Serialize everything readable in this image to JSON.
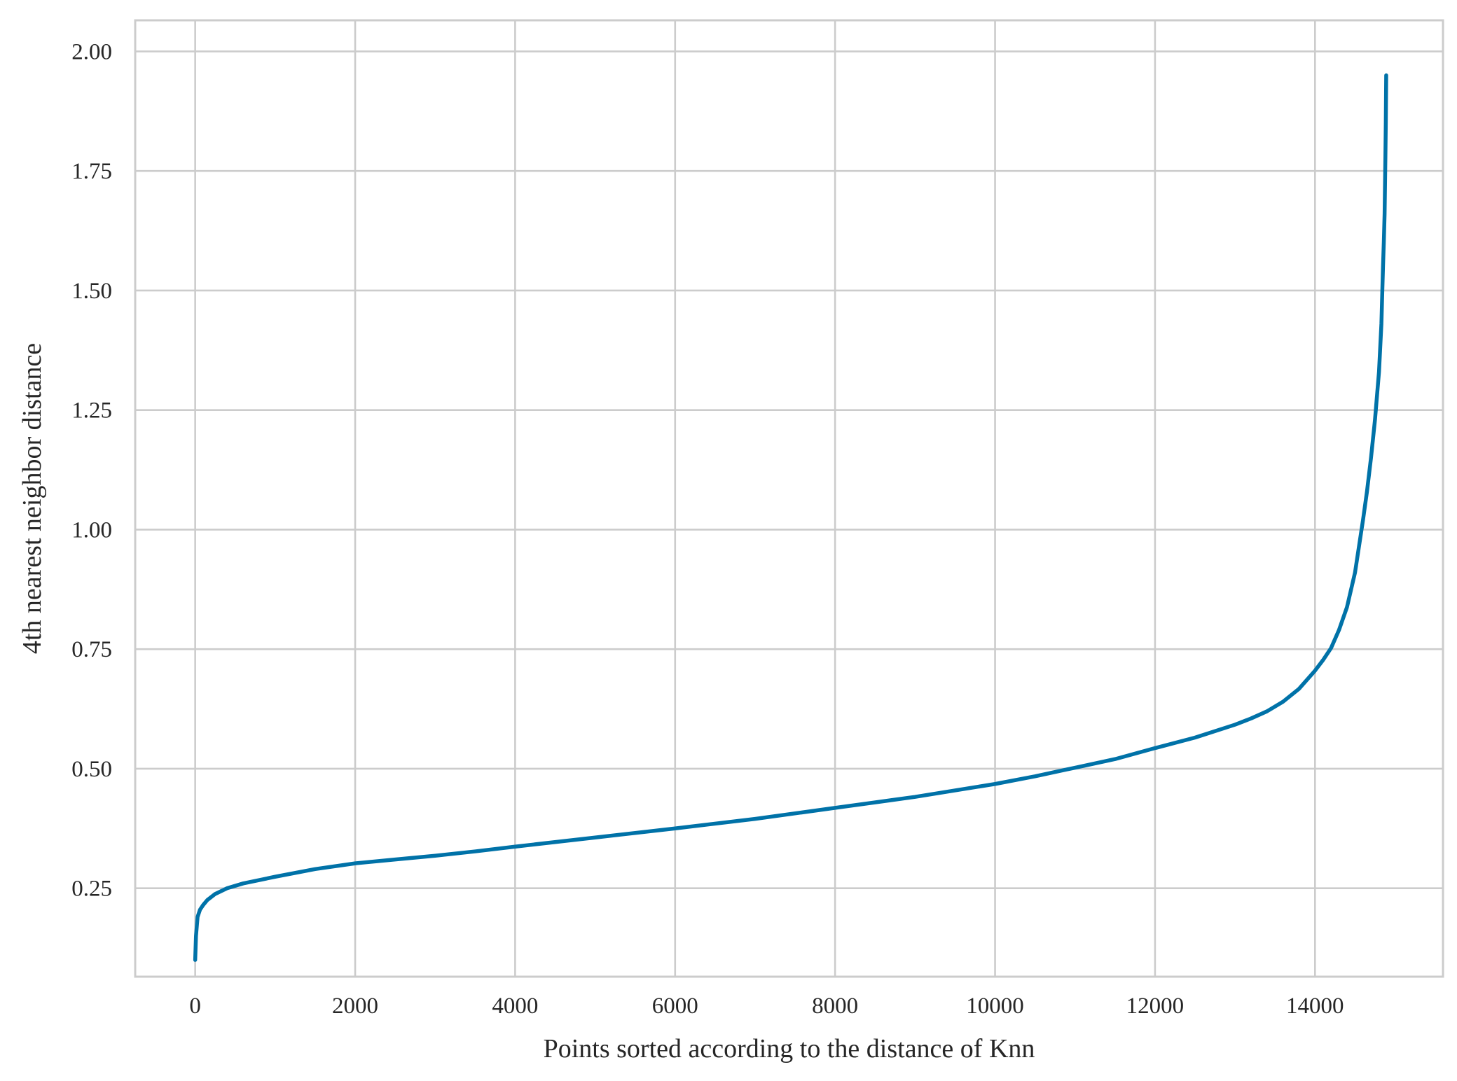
{
  "chart_data": {
    "type": "line",
    "title": "",
    "xlabel": "Points sorted according to the distance of Knn",
    "ylabel": "4th nearest neighbor distance",
    "xlim": [
      -750,
      15600
    ],
    "ylim": [
      0.065,
      2.065
    ],
    "x_ticks": [
      0,
      2000,
      4000,
      6000,
      8000,
      10000,
      12000,
      14000
    ],
    "y_ticks": [
      0.25,
      0.5,
      0.75,
      1.0,
      1.25,
      1.5,
      1.75,
      2.0
    ],
    "x_tick_labels": [
      "0",
      "2000",
      "4000",
      "6000",
      "8000",
      "10000",
      "12000",
      "14000"
    ],
    "y_tick_labels": [
      "0.25",
      "0.50",
      "0.75",
      "1.00",
      "1.25",
      "1.50",
      "1.75",
      "2.00"
    ],
    "grid": true,
    "legend": "none",
    "series": [
      {
        "color": "#0072a8",
        "x": [
          0,
          10,
          30,
          60,
          100,
          150,
          250,
          400,
          600,
          1000,
          1500,
          2000,
          2500,
          3000,
          3500,
          4000,
          5000,
          6000,
          7000,
          8000,
          9000,
          10000,
          10500,
          11000,
          11500,
          12000,
          12500,
          13000,
          13200,
          13400,
          13600,
          13800,
          14000,
          14100,
          14200,
          14300,
          14400,
          14500,
          14600,
          14650,
          14700,
          14750,
          14800,
          14830,
          14850,
          14860,
          14870,
          14875,
          14880,
          14885,
          14890
        ],
        "y": [
          0.1,
          0.15,
          0.19,
          0.205,
          0.215,
          0.225,
          0.238,
          0.25,
          0.26,
          0.274,
          0.29,
          0.302,
          0.31,
          0.318,
          0.327,
          0.337,
          0.356,
          0.375,
          0.395,
          0.418,
          0.441,
          0.468,
          0.484,
          0.502,
          0.52,
          0.543,
          0.565,
          0.592,
          0.605,
          0.62,
          0.64,
          0.667,
          0.705,
          0.727,
          0.752,
          0.79,
          0.838,
          0.91,
          1.02,
          1.08,
          1.15,
          1.23,
          1.33,
          1.43,
          1.55,
          1.6,
          1.66,
          1.72,
          1.78,
          1.85,
          1.95
        ]
      }
    ]
  }
}
